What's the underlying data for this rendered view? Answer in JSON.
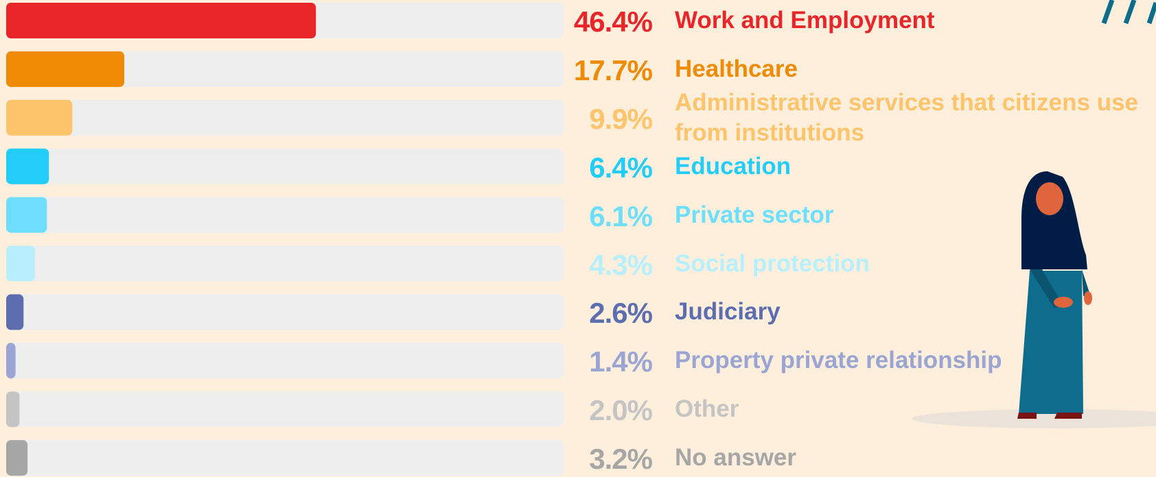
{
  "chart_data": {
    "type": "bar",
    "orientation": "horizontal",
    "categories": [
      "Work and Employment",
      "Healthcare",
      "Administrative services that citizens use from institutions",
      "Education",
      "Private sector",
      "Social protection",
      "Judiciary",
      "Property private relationship",
      "Other",
      "No answer"
    ],
    "values": [
      46.4,
      17.7,
      9.9,
      6.4,
      6.1,
      4.3,
      2.6,
      1.4,
      2.0,
      3.2
    ],
    "value_labels": [
      "46.4%",
      "17.7%",
      "9.9%",
      "6.4%",
      "6.1%",
      "4.3%",
      "2.6%",
      "1.4%",
      "2.0%",
      "3.2%"
    ],
    "colors": [
      "#e8262a",
      "#ee8a04",
      "#fec46b",
      "#22cdf9",
      "#6ddffd",
      "#b8effd",
      "#5c6eaf",
      "#9aa5d3",
      "#c4c4c4",
      "#a6a6a6"
    ],
    "xlim": [
      0,
      83.5
    ]
  }
}
